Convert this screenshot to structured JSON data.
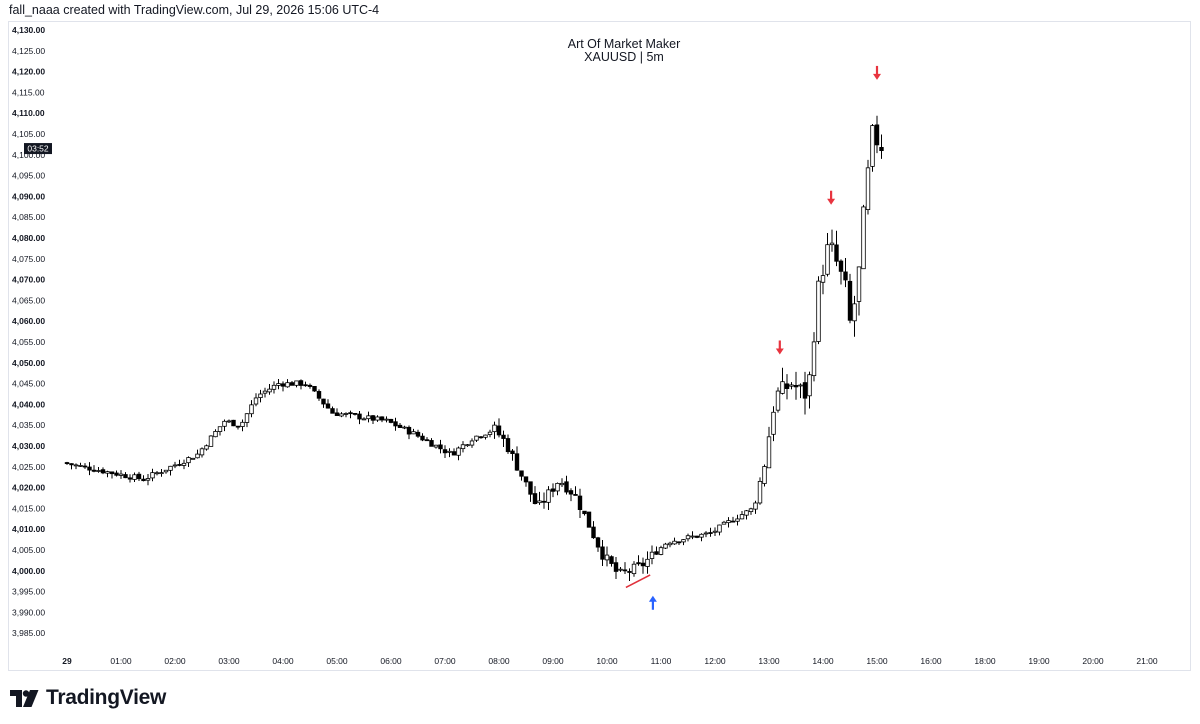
{
  "header": {
    "created_text": "fall_naaa created with TradingView.com, Jul 29, 2026 15:06 UTC-4"
  },
  "logo": {
    "text": "TradingView",
    "icon": "tradingview-logo-icon"
  },
  "chart_data": {
    "type": "candlestick",
    "title": "Art Of Market Maker",
    "subtitle": "XAUUSD | 5m",
    "symbol": "XAUUSD",
    "timeframe": "5m",
    "ylim": [
      3982,
      4132
    ],
    "y_ticks": [
      "4,130.00",
      "4,125.00",
      "4,120.00",
      "4,115.00",
      "4,110.00",
      "4,105.00",
      "4,100.00",
      "4,095.00",
      "4,090.00",
      "4,085.00",
      "4,080.00",
      "4,075.00",
      "4,070.00",
      "4,065.00",
      "4,060.00",
      "4,055.00",
      "4,050.00",
      "4,045.00",
      "4,040.00",
      "4,035.00",
      "4,030.00",
      "4,025.00",
      "4,020.00",
      "4,015.00",
      "4,010.00",
      "4,005.00",
      "4,000.00",
      "3,995.00",
      "3,990.00",
      "3,985.00"
    ],
    "y_ticks_bold": [
      "4,130.00",
      "4,120.00",
      "4,110.00",
      "4,090.00",
      "4,080.00",
      "4,070.00",
      "4,060.00",
      "4,050.00",
      "4,040.00",
      "4,030.00",
      "4,020.00",
      "4,010.00",
      "4,000.00"
    ],
    "x_ticks": [
      "29",
      "01:00",
      "02:00",
      "03:00",
      "04:00",
      "05:00",
      "06:00",
      "07:00",
      "08:00",
      "09:00",
      "10:00",
      "11:00",
      "12:00",
      "13:00",
      "14:00",
      "15:00",
      "16:00",
      "18:00",
      "19:00",
      "20:00",
      "21:00"
    ],
    "price_label": {
      "text": "03:52",
      "value": 4101.5
    },
    "colors": {
      "up": "#ffffff",
      "down": "#000000",
      "wick": "#000000",
      "sell_arrow": "#e8343f",
      "buy_arrow": "#2962ff",
      "trendline": "#e0303a",
      "price_label_bg": "#131722"
    },
    "waypoints": [
      [
        0,
        4026
      ],
      [
        1.5,
        4022
      ],
      [
        2.0,
        4025
      ],
      [
        2.5,
        4028
      ],
      [
        3.0,
        4036
      ],
      [
        3.3,
        4035
      ],
      [
        3.6,
        4042
      ],
      [
        4.0,
        4045
      ],
      [
        4.5,
        4045
      ],
      [
        5.0,
        4038
      ],
      [
        6.0,
        4036
      ],
      [
        6.5,
        4033
      ],
      [
        7.2,
        4028
      ],
      [
        7.6,
        4032
      ],
      [
        8.0,
        4034
      ],
      [
        8.2,
        4031
      ],
      [
        8.8,
        4015
      ],
      [
        9.2,
        4022
      ],
      [
        9.5,
        4018
      ],
      [
        10.0,
        4004
      ],
      [
        10.3,
        3999
      ],
      [
        10.7,
        4001
      ],
      [
        11.2,
        4007
      ],
      [
        12.0,
        4009
      ],
      [
        12.5,
        4013
      ],
      [
        12.8,
        4015
      ],
      [
        13.0,
        4026
      ],
      [
        13.2,
        4042
      ],
      [
        13.5,
        4045
      ],
      [
        13.8,
        4042
      ],
      [
        14.0,
        4068
      ],
      [
        14.2,
        4079
      ],
      [
        14.5,
        4068
      ],
      [
        14.6,
        4058
      ],
      [
        14.75,
        4072
      ],
      [
        14.85,
        4088
      ],
      [
        15.0,
        4105
      ],
      [
        15.15,
        4102
      ]
    ],
    "annotations": [
      {
        "type": "sell_arrow",
        "time": 13.2,
        "price": 4052
      },
      {
        "type": "sell_arrow",
        "time": 14.15,
        "price": 4088
      },
      {
        "type": "sell_arrow",
        "time": 15.0,
        "price": 4118
      },
      {
        "type": "buy_arrow",
        "time": 10.85,
        "price": 3994
      },
      {
        "type": "trendline",
        "from": [
          10.35,
          3996
        ],
        "to": [
          10.8,
          3999
        ]
      }
    ]
  }
}
